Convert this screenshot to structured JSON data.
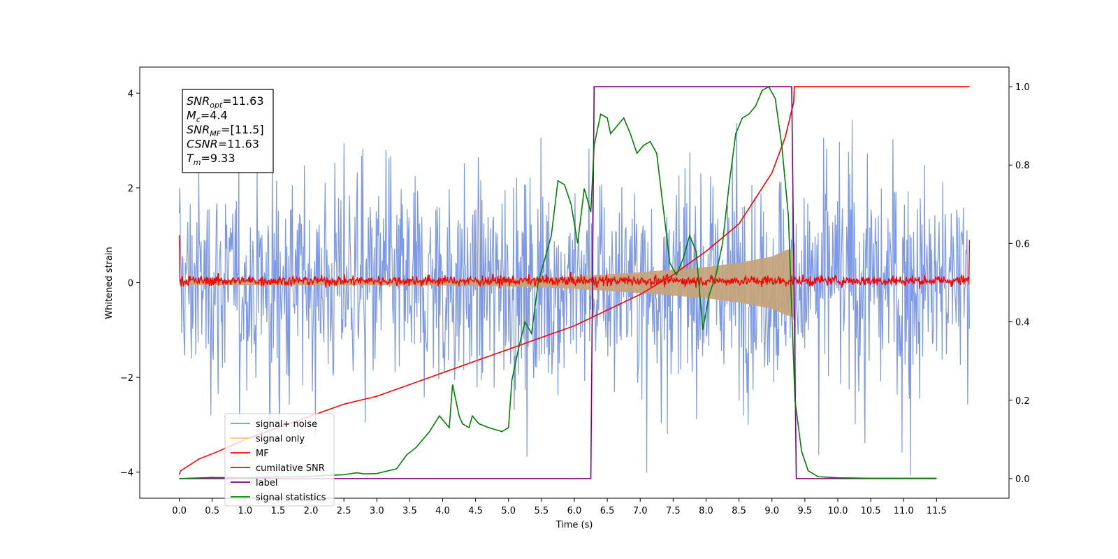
{
  "chart_data": {
    "type": "line",
    "xlabel": "Time (s)",
    "ylabel": "Whitened strain",
    "xlim": [
      -0.6,
      12.6
    ],
    "ylim": [
      -4.55,
      4.55
    ],
    "y2lim": [
      -0.05,
      1.05
    ],
    "x_ticks": [
      0.0,
      0.5,
      1.0,
      1.5,
      2.0,
      2.5,
      3.0,
      3.5,
      4.0,
      4.5,
      5.0,
      5.5,
      6.0,
      6.5,
      7.0,
      7.5,
      8.0,
      8.5,
      9.0,
      9.5,
      10.0,
      10.5,
      11.0,
      11.5
    ],
    "x_tick_labels": [
      "0.0",
      "0.5",
      "1.0",
      "1.5",
      "2.0",
      "2.5",
      "3.0",
      "3.5",
      "4.0",
      "4.5",
      "5.0",
      "5.5",
      "6.0",
      "6.5",
      "7.0",
      "7.5",
      "8.0",
      "8.5",
      "9.0",
      "9.5",
      "10.0",
      "10.5",
      "11.0",
      "11.5"
    ],
    "y_ticks": [
      -4,
      -2,
      0,
      2,
      4
    ],
    "y_tick_labels": [
      "−4",
      "−2",
      "0",
      "2",
      "4"
    ],
    "y2_ticks": [
      0.0,
      0.2,
      0.4,
      0.6,
      0.8,
      1.0
    ],
    "y2_tick_labels": [
      "0.0",
      "0.2",
      "0.4",
      "0.6",
      "0.8",
      "1.0"
    ],
    "legend_placement": "lower-left",
    "grid": false,
    "series": [
      {
        "name": "signal+ noise",
        "color": "#7692e6",
        "axis": "left",
        "kind": "noise",
        "x_range": [
          0.0,
          12.0
        ],
        "envelope_upper": 2.2,
        "envelope_lower": -2.2,
        "peak_max": 3.6,
        "peak_min": -4.1
      },
      {
        "name": "signal only",
        "color": "#c4a47c",
        "axis": "left",
        "kind": "chirp-envelope",
        "x": [
          0.0,
          4.0,
          5.0,
          6.0,
          7.0,
          8.0,
          8.5,
          9.0,
          9.2,
          9.33
        ],
        "amplitude": [
          0.05,
          0.06,
          0.08,
          0.13,
          0.22,
          0.33,
          0.42,
          0.55,
          0.68,
          0.72
        ]
      },
      {
        "name": "MF",
        "color": "#ff0000",
        "axis": "left",
        "kind": "noise",
        "x_range": [
          0.0,
          12.0
        ],
        "envelope_upper": 0.2,
        "envelope_lower": -0.15,
        "start_value": 1.0,
        "end_value": 0.9
      },
      {
        "name": "cumilative SNR",
        "color": "#ff0000",
        "axis": "right",
        "x": [
          0.0,
          0.02,
          0.3,
          0.6,
          1.0,
          1.5,
          2.0,
          2.5,
          3.0,
          3.5,
          4.0,
          4.5,
          5.0,
          5.5,
          6.0,
          6.5,
          7.0,
          7.5,
          8.0,
          8.5,
          9.0,
          9.2,
          9.33,
          9.34,
          12.0
        ],
        "y": [
          0.01,
          0.02,
          0.05,
          0.07,
          0.1,
          0.13,
          0.16,
          0.19,
          0.21,
          0.24,
          0.27,
          0.3,
          0.33,
          0.36,
          0.39,
          0.43,
          0.47,
          0.52,
          0.58,
          0.65,
          0.78,
          0.87,
          0.96,
          1.0,
          1.0
        ]
      },
      {
        "name": "label",
        "color": "#800080",
        "axis": "right",
        "x": [
          0.0,
          6.25,
          6.3,
          9.3,
          9.37,
          11.5
        ],
        "y": [
          0.0,
          0.0,
          1.0,
          1.0,
          0.0,
          0.0
        ]
      },
      {
        "name": "signal statistics",
        "color": "#008000",
        "axis": "right",
        "x": [
          0.0,
          0.5,
          1.0,
          1.5,
          2.0,
          2.5,
          2.7,
          2.8,
          3.0,
          3.3,
          3.45,
          3.6,
          3.8,
          3.95,
          4.1,
          4.15,
          4.25,
          4.3,
          4.4,
          4.45,
          4.55,
          4.7,
          4.9,
          5.0,
          5.05,
          5.15,
          5.25,
          5.35,
          5.45,
          5.55,
          5.65,
          5.75,
          5.85,
          5.95,
          6.05,
          6.15,
          6.25,
          6.3,
          6.4,
          6.5,
          6.55,
          6.65,
          6.75,
          6.85,
          6.95,
          7.05,
          7.15,
          7.25,
          7.35,
          7.45,
          7.55,
          7.65,
          7.75,
          7.85,
          7.95,
          8.05,
          8.15,
          8.25,
          8.35,
          8.45,
          8.55,
          8.65,
          8.75,
          8.85,
          8.95,
          9.05,
          9.15,
          9.25,
          9.35,
          9.45,
          9.55,
          9.7,
          10.0,
          10.5,
          11.0,
          11.5
        ],
        "y": [
          0.0,
          0.003,
          0.002,
          0.004,
          0.006,
          0.01,
          0.015,
          0.012,
          0.013,
          0.025,
          0.06,
          0.08,
          0.12,
          0.16,
          0.13,
          0.24,
          0.16,
          0.14,
          0.13,
          0.16,
          0.14,
          0.13,
          0.12,
          0.13,
          0.25,
          0.33,
          0.4,
          0.37,
          0.5,
          0.56,
          0.62,
          0.76,
          0.75,
          0.7,
          0.6,
          0.74,
          0.68,
          0.85,
          0.93,
          0.92,
          0.88,
          0.9,
          0.92,
          0.88,
          0.83,
          0.85,
          0.86,
          0.83,
          0.69,
          0.55,
          0.52,
          0.56,
          0.62,
          0.58,
          0.38,
          0.47,
          0.52,
          0.6,
          0.75,
          0.88,
          0.92,
          0.93,
          0.95,
          0.99,
          1.0,
          0.97,
          0.85,
          0.67,
          0.2,
          0.07,
          0.02,
          0.005,
          0.002,
          0.001,
          0.001,
          0.001
        ]
      }
    ],
    "annotations": [
      {
        "main": "SNR",
        "sub": "opt",
        "rest": "=11.63"
      },
      {
        "main": "M",
        "sub": "c",
        "rest": "=4.4"
      },
      {
        "main": "SNR",
        "sub": "MF",
        "rest": "=[11.5]"
      },
      {
        "main": "CSNR",
        "sub": "",
        "rest": "=11.63"
      },
      {
        "main": "T",
        "sub": "m",
        "rest": "=9.33"
      }
    ]
  }
}
